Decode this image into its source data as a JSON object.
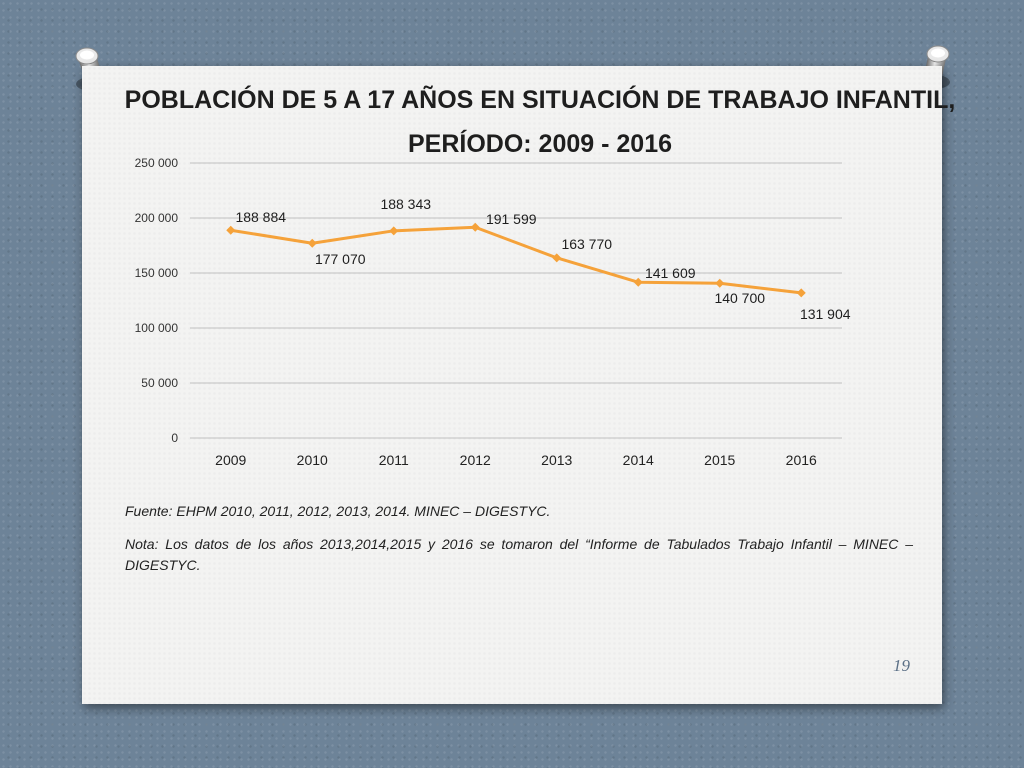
{
  "slide": {
    "title_line1": "POBLACIÓN DE 5 A 17 AÑOS EN SITUACIÓN DE TRABAJO INFANTIL,",
    "title_line2": "PERÍODO:  2009 - 2016",
    "source": "Fuente: EHPM 2010, 2011, 2012, 2013, 2014. MINEC – DIGESTYC.",
    "note": "Nota: Los  datos de los años 2013,2014,2015 y 2016 se tomaron del  “Informe de Tabulados  Trabajo Infantil – MINEC – DIGESTYC.",
    "page_number": "19"
  },
  "colors": {
    "background": "#6d8398",
    "card": "#f3f3f2",
    "series_line": "#f5a23a",
    "gridline": "#c0c0c0",
    "page_number": "#5a6f86"
  },
  "chart_data": {
    "type": "line",
    "x": [
      "2009",
      "2010",
      "2011",
      "2012",
      "2013",
      "2014",
      "2015",
      "2016"
    ],
    "series": [
      {
        "values": [
          188884,
          177070,
          188343,
          191599,
          163770,
          141609,
          140700,
          131904
        ],
        "labels": [
          "188 884",
          "177 070",
          "188 343",
          "191 599",
          "163 770",
          "141 609",
          "140 700",
          "131 904"
        ]
      }
    ],
    "ylim": [
      0,
      250000
    ],
    "yticks": [
      0,
      50000,
      100000,
      150000,
      200000,
      250000
    ],
    "ytick_labels": [
      "0",
      "50 000",
      "100 000",
      "150 000",
      "200 000",
      "250 000"
    ],
    "grid": true,
    "legend": false,
    "marker": "diamond"
  }
}
